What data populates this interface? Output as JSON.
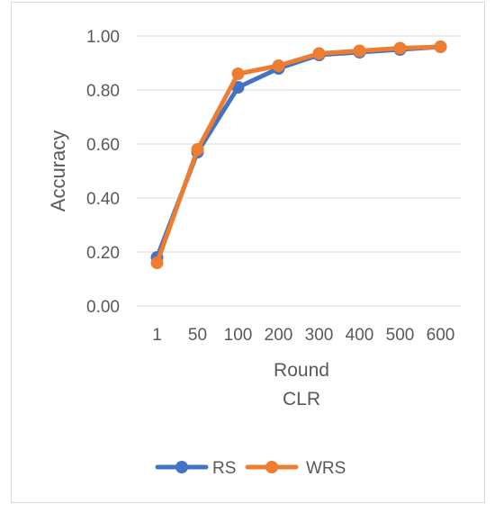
{
  "chart_data": {
    "type": "line",
    "categories": [
      "1",
      "50",
      "100",
      "200",
      "300",
      "400",
      "500",
      "600"
    ],
    "series": [
      {
        "name": "RS",
        "color": "#4472C4",
        "values": [
          0.18,
          0.57,
          0.81,
          0.88,
          0.93,
          0.94,
          0.95,
          0.96
        ]
      },
      {
        "name": "WRS",
        "color": "#ED7D31",
        "values": [
          0.16,
          0.58,
          0.86,
          0.89,
          0.935,
          0.945,
          0.955,
          0.96
        ]
      }
    ],
    "y_ticks": [
      "0.00",
      "0.20",
      "0.40",
      "0.60",
      "0.80",
      "1.00"
    ],
    "ylim": [
      0,
      1
    ],
    "ylabel": "Accuracy",
    "xlabel": "Round",
    "xlabel2": "CLR",
    "grid": true,
    "legend_position": "bottom"
  }
}
